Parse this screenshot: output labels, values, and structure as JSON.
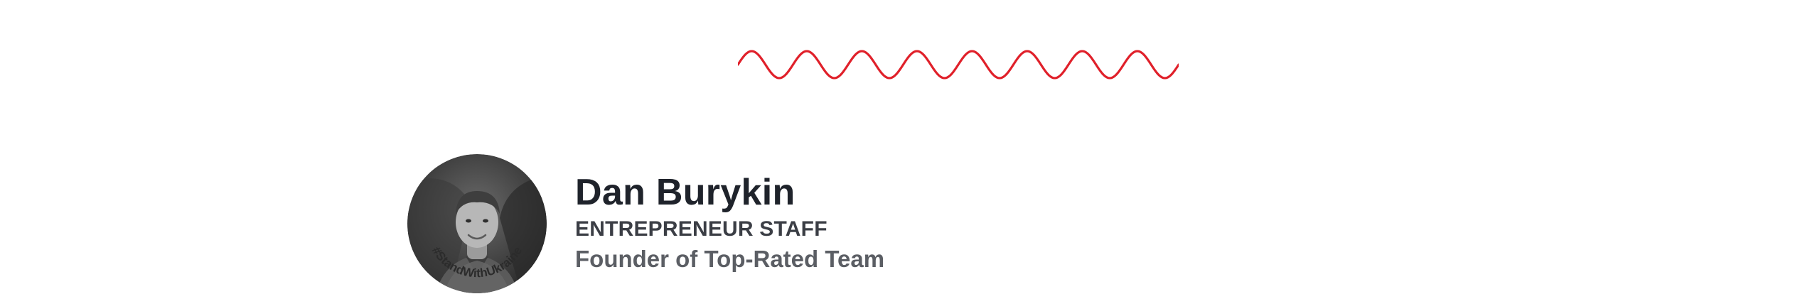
{
  "divider": {
    "icon": "wave-divider-icon",
    "color": "#e0202a"
  },
  "author": {
    "name": "Dan Burykin",
    "role": "ENTREPRENEUR STAFF",
    "description": "Founder of Top-Rated Team",
    "avatar": {
      "badge_text": "#StandWithUkraine"
    }
  }
}
